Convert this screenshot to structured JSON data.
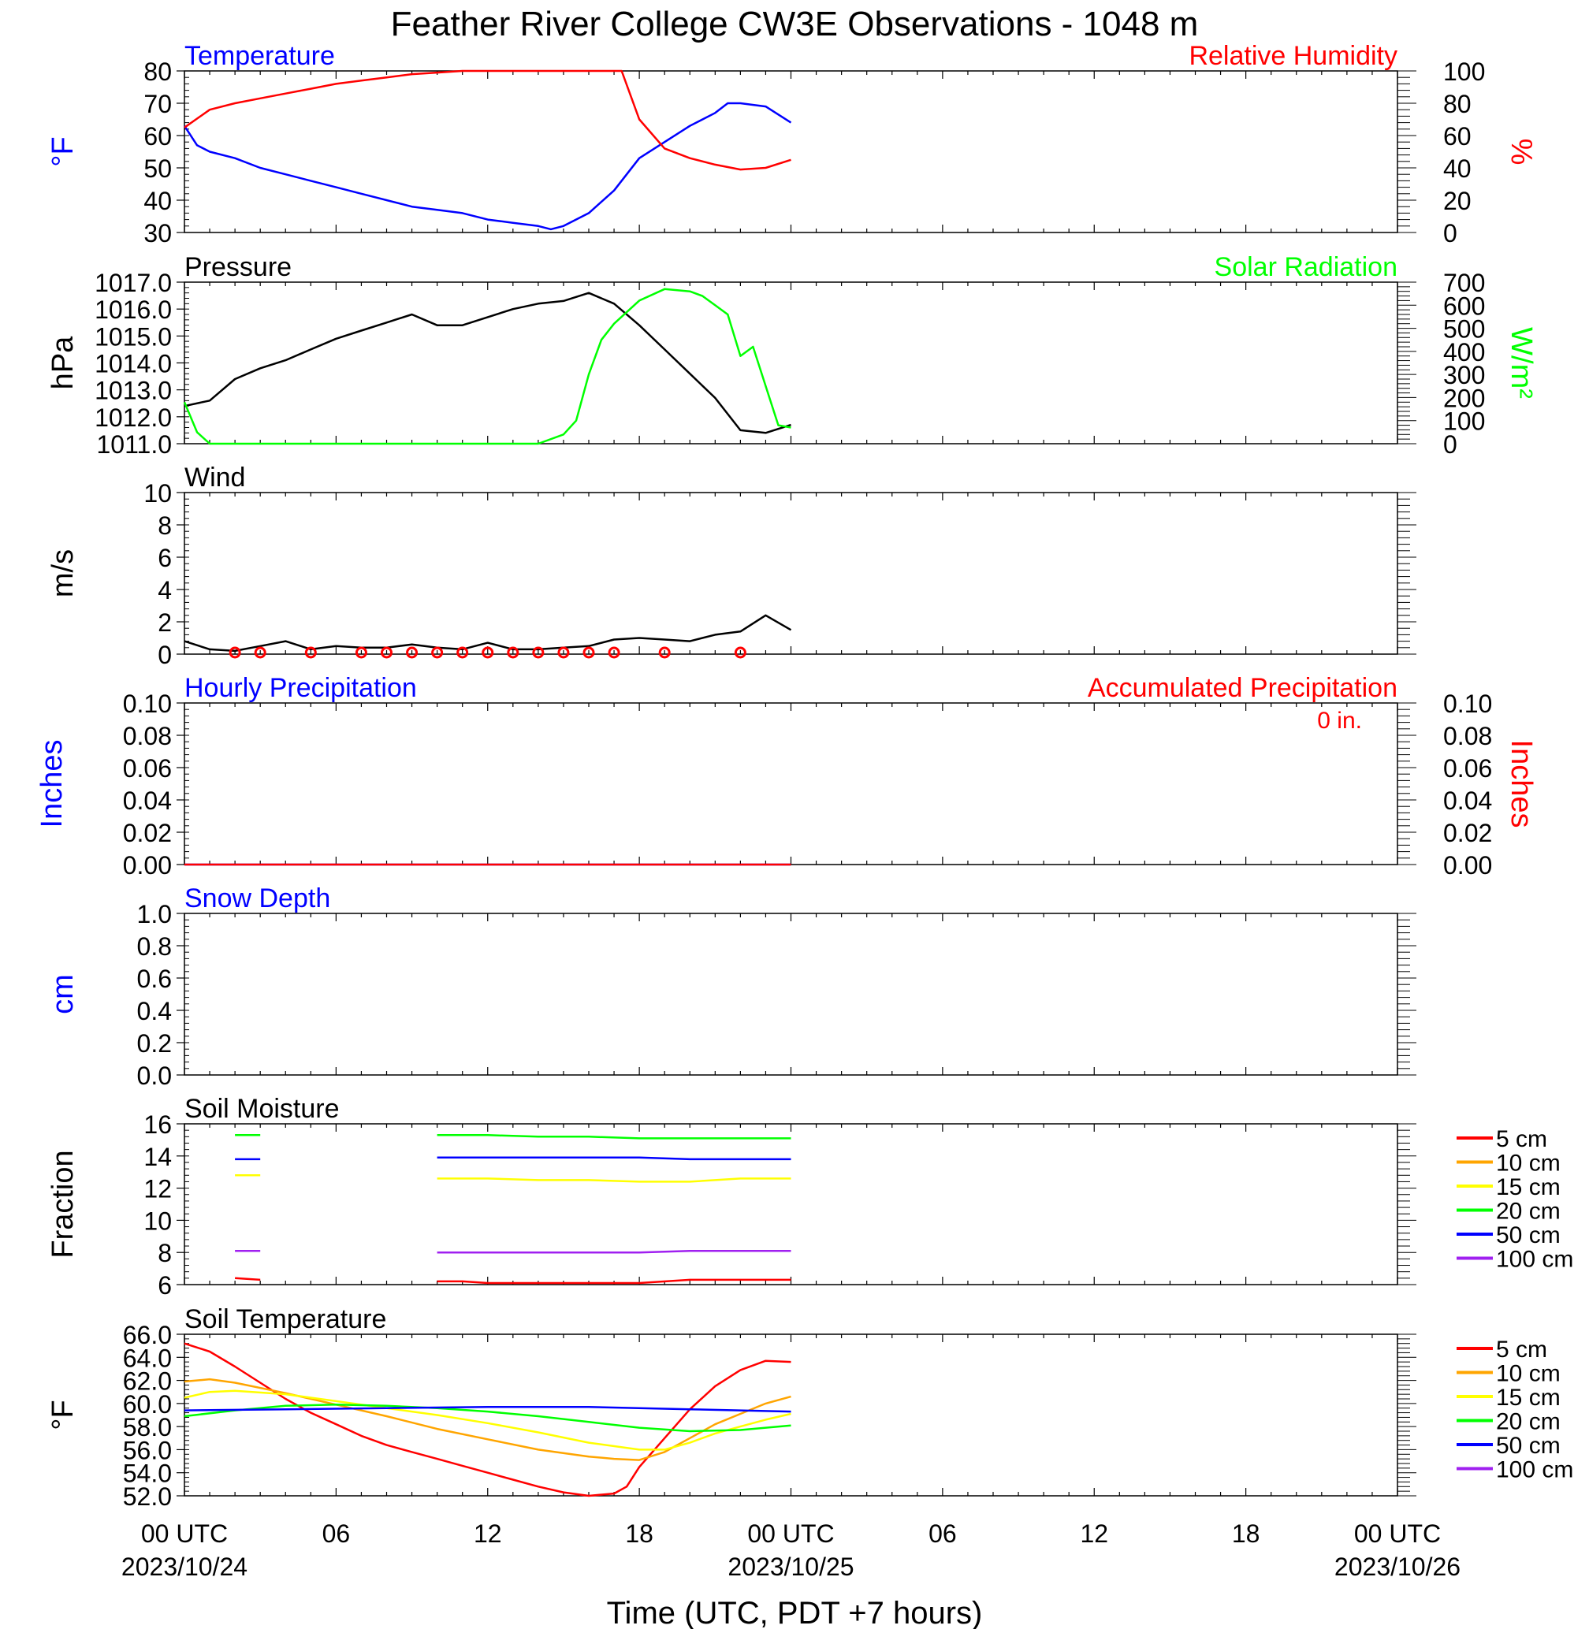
{
  "title": "Feather River College CW3E Observations - 1048 m",
  "xlabel": "Time (UTC, PDT +7 hours)",
  "colors": {
    "temp": "#0000ff",
    "rh": "#ff0000",
    "pres": "#000000",
    "solar": "#00ff00",
    "wind": "#000000",
    "barb": "#ff0000",
    "precip_hourly": "#0000ff",
    "precip_acc": "#ff0000",
    "snow": "#0000ff"
  },
  "x_axis": {
    "ticks": [
      {
        "h": 0,
        "label": "00 UTC",
        "date": "2023/10/24"
      },
      {
        "h": 6,
        "label": "06",
        "date": ""
      },
      {
        "h": 12,
        "label": "12",
        "date": ""
      },
      {
        "h": 18,
        "label": "18",
        "date": ""
      },
      {
        "h": 24,
        "label": "00 UTC",
        "date": "2023/10/25"
      },
      {
        "h": 30,
        "label": "06",
        "date": ""
      },
      {
        "h": 36,
        "label": "12",
        "date": ""
      },
      {
        "h": 42,
        "label": "18",
        "date": ""
      },
      {
        "h": 48,
        "label": "00 UTC",
        "date": "2023/10/26"
      }
    ],
    "range": [
      0,
      48
    ]
  },
  "legend": [
    {
      "label": "5 cm",
      "color": "#ff0000"
    },
    {
      "label": "10 cm",
      "color": "#ffa500"
    },
    {
      "label": "15 cm",
      "color": "#ffff00"
    },
    {
      "label": "20 cm",
      "color": "#00ff00"
    },
    {
      "label": "50 cm",
      "color": "#0000ff"
    },
    {
      "label": "100 cm",
      "color": "#a020f0"
    }
  ],
  "panels": [
    {
      "id": "temp_rh",
      "left_title": "Temperature",
      "left_title_color": "#0000ff",
      "right_title": "Relative Humidity",
      "right_title_color": "#ff0000",
      "left_ylabel": "°F",
      "left_ylabel_color": "#0000ff",
      "right_ylabel": "%",
      "right_ylabel_color": "#ff0000",
      "left_ticks": [
        "80",
        "70",
        "60",
        "50",
        "40",
        "30"
      ],
      "right_ticks": [
        "100",
        "80",
        "60",
        "40",
        "20",
        "0"
      ],
      "note": ""
    },
    {
      "id": "pres_solar",
      "left_title": "Pressure",
      "left_title_color": "#000000",
      "right_title": "Solar Radiation",
      "right_title_color": "#00ff00",
      "left_ylabel": "hPa",
      "left_ylabel_color": "#000000",
      "right_ylabel": "W/m²",
      "right_ylabel_color": "#00ff00",
      "left_ticks": [
        "1017.0",
        "1016.0",
        "1015.0",
        "1014.0",
        "1013.0",
        "1012.0",
        "1011.0"
      ],
      "right_ticks": [
        "700",
        "600",
        "500",
        "400",
        "300",
        "200",
        "100",
        "0"
      ],
      "note": ""
    },
    {
      "id": "wind",
      "left_title": "Wind",
      "left_title_color": "#000000",
      "right_title": "",
      "right_title_color": "#000000",
      "left_ylabel": "m/s",
      "left_ylabel_color": "#000000",
      "right_ylabel": "",
      "right_ylabel_color": "#000000",
      "left_ticks": [
        "10",
        "8",
        "6",
        "4",
        "2",
        "0"
      ],
      "right_ticks": [],
      "note": ""
    },
    {
      "id": "precip",
      "left_title": "Hourly Precipitation",
      "left_title_color": "#0000ff",
      "right_title": "Accumulated Precipitation",
      "right_title_color": "#ff0000",
      "left_ylabel": "Inches",
      "left_ylabel_color": "#0000ff",
      "right_ylabel": "Inches",
      "right_ylabel_color": "#ff0000",
      "left_ticks": [
        "0.10",
        "0.08",
        "0.06",
        "0.04",
        "0.02",
        "0.00"
      ],
      "right_ticks": [
        "0.10",
        "0.08",
        "0.06",
        "0.04",
        "0.02",
        "0.00"
      ],
      "note": "0 in."
    },
    {
      "id": "snow",
      "left_title": "Snow Depth",
      "left_title_color": "#0000ff",
      "right_title": "",
      "right_title_color": "#000000",
      "left_ylabel": "cm",
      "left_ylabel_color": "#0000ff",
      "right_ylabel": "",
      "right_ylabel_color": "#000000",
      "left_ticks": [
        "1.0",
        "0.8",
        "0.6",
        "0.4",
        "0.2",
        "0.0"
      ],
      "right_ticks": [],
      "note": ""
    },
    {
      "id": "soil_moist",
      "left_title": "Soil Moisture",
      "left_title_color": "#000000",
      "right_title": "",
      "right_title_color": "#000000",
      "left_ylabel": "Fraction",
      "left_ylabel_color": "#000000",
      "right_ylabel": "",
      "right_ylabel_color": "#000000",
      "left_ticks": [
        "16",
        "14",
        "12",
        "10",
        "8",
        "6"
      ],
      "right_ticks": [],
      "note": ""
    },
    {
      "id": "soil_temp",
      "left_title": "Soil Temperature",
      "left_title_color": "#000000",
      "right_title": "",
      "right_title_color": "#000000",
      "left_ylabel": "°F",
      "left_ylabel_color": "#000000",
      "right_ylabel": "",
      "right_ylabel_color": "#000000",
      "left_ticks": [
        "66.0",
        "64.0",
        "62.0",
        "60.0",
        "58.0",
        "56.0",
        "54.0",
        "52.0"
      ],
      "right_ticks": [],
      "note": ""
    }
  ],
  "chart_data": [
    {
      "type": "line",
      "panel": "temp_rh",
      "x_units": "hours since 2023/10/24 00 UTC",
      "xlim": [
        0,
        48
      ],
      "series": [
        {
          "name": "Temperature",
          "axis": "left",
          "ylim": [
            30,
            80
          ],
          "x": [
            0,
            0.5,
            1,
            2,
            3,
            4,
            5,
            6,
            7,
            8,
            9,
            10,
            11,
            12,
            13,
            14,
            14.5,
            15,
            16,
            17,
            18,
            19,
            20,
            21,
            21.5,
            22,
            23,
            24
          ],
          "y": [
            63,
            57,
            55,
            53,
            50,
            48,
            46,
            44,
            42,
            40,
            38,
            37,
            36,
            34,
            33,
            32,
            31,
            32,
            36,
            43,
            53,
            58,
            63,
            67,
            70,
            70,
            69,
            64
          ]
        },
        {
          "name": "Relative Humidity",
          "axis": "right",
          "ylim": [
            0,
            100
          ],
          "x": [
            0,
            1,
            2,
            3,
            4,
            5,
            6,
            7,
            8,
            9,
            10,
            11,
            12,
            13,
            14,
            15,
            16,
            17,
            17.3,
            18,
            19,
            20,
            21,
            22,
            23,
            24
          ],
          "y": [
            65,
            76,
            80,
            83,
            86,
            89,
            92,
            94,
            96,
            98,
            99,
            100,
            100,
            100,
            100,
            100,
            100,
            100,
            100,
            70,
            52,
            46,
            42,
            39,
            40,
            45
          ]
        }
      ]
    },
    {
      "type": "line",
      "panel": "pres_solar",
      "x_units": "hours since 2023/10/24 00 UTC",
      "xlim": [
        0,
        48
      ],
      "series": [
        {
          "name": "Pressure",
          "axis": "left",
          "ylim": [
            1011,
            1017
          ],
          "x": [
            0,
            1,
            2,
            3,
            4,
            5,
            6,
            7,
            8,
            9,
            10,
            11,
            12,
            13,
            14,
            15,
            16,
            17,
            18,
            19,
            20,
            21,
            22,
            23,
            24
          ],
          "y": [
            1012.4,
            1012.6,
            1013.4,
            1013.8,
            1014.1,
            1014.5,
            1014.9,
            1015.2,
            1015.5,
            1015.8,
            1015.4,
            1015.4,
            1015.7,
            1016.0,
            1016.2,
            1016.3,
            1016.6,
            1016.2,
            1015.4,
            1014.5,
            1013.6,
            1012.7,
            1011.5,
            1011.4,
            1011.7
          ]
        },
        {
          "name": "Solar Radiation",
          "axis": "right",
          "ylim": [
            0,
            700
          ],
          "x": [
            0,
            0.5,
            1,
            2,
            14,
            15,
            15.5,
            16,
            16.5,
            17,
            18,
            19,
            20,
            20.5,
            21,
            21.5,
            22,
            22.5,
            23,
            23.5,
            24
          ],
          "y": [
            180,
            50,
            0,
            0,
            0,
            40,
            100,
            300,
            450,
            520,
            620,
            670,
            660,
            640,
            600,
            560,
            380,
            420,
            250,
            80,
            70
          ]
        }
      ]
    },
    {
      "type": "line",
      "panel": "wind",
      "x_units": "hours since 2023/10/24 00 UTC",
      "xlim": [
        0,
        48
      ],
      "ylim": [
        0,
        10
      ],
      "series": [
        {
          "name": "Wind Speed",
          "x": [
            0,
            1,
            2,
            3,
            4,
            5,
            6,
            7,
            8,
            9,
            10,
            11,
            12,
            13,
            14,
            15,
            16,
            17,
            18,
            19,
            20,
            21,
            22,
            23,
            24
          ],
          "y": [
            0.8,
            0.3,
            0.2,
            0.5,
            0.8,
            0.3,
            0.5,
            0.4,
            0.4,
            0.6,
            0.4,
            0.3,
            0.7,
            0.3,
            0.3,
            0.4,
            0.5,
            0.9,
            1.0,
            0.9,
            0.8,
            1.2,
            1.4,
            2.4,
            1.5
          ]
        }
      ],
      "barbs_hours": [
        2,
        3,
        5,
        7,
        8,
        9,
        10,
        11,
        12,
        13,
        14,
        15,
        16,
        17,
        19,
        22
      ]
    },
    {
      "type": "line",
      "panel": "precip",
      "x_units": "hours since 2023/10/24 00 UTC",
      "xlim": [
        0,
        48
      ],
      "ylim": [
        0,
        0.1
      ],
      "series": [
        {
          "name": "Hourly Precipitation",
          "x": [
            0,
            24
          ],
          "y": [
            0,
            0
          ]
        },
        {
          "name": "Accumulated Precipitation",
          "x": [
            0,
            24
          ],
          "y": [
            0,
            0
          ]
        }
      ]
    },
    {
      "type": "line",
      "panel": "snow",
      "x_units": "hours since 2023/10/24 00 UTC",
      "xlim": [
        0,
        48
      ],
      "ylim": [
        0,
        1
      ],
      "series": []
    },
    {
      "type": "line",
      "panel": "soil_moist",
      "x_units": "hours since 2023/10/24 00 UTC",
      "xlim": [
        0,
        48
      ],
      "ylim": [
        6,
        16
      ],
      "series": [
        {
          "name": "5 cm",
          "segments": [
            {
              "x": [
                2,
                3
              ],
              "y": [
                6.4,
                6.3
              ]
            },
            {
              "x": [
                10,
                11,
                12,
                14,
                16,
                18,
                20,
                22,
                24
              ],
              "y": [
                6.2,
                6.2,
                6.1,
                6.1,
                6.1,
                6.1,
                6.3,
                6.3,
                6.3
              ]
            }
          ]
        },
        {
          "name": "15 cm",
          "segments": [
            {
              "x": [
                2,
                3
              ],
              "y": [
                12.8,
                12.8
              ]
            },
            {
              "x": [
                10,
                12,
                14,
                16,
                18,
                20,
                22,
                24
              ],
              "y": [
                12.6,
                12.6,
                12.5,
                12.5,
                12.4,
                12.4,
                12.6,
                12.6
              ]
            }
          ]
        },
        {
          "name": "20 cm",
          "segments": [
            {
              "x": [
                2,
                3
              ],
              "y": [
                15.3,
                15.3
              ]
            },
            {
              "x": [
                10,
                12,
                14,
                16,
                18,
                20,
                22,
                24
              ],
              "y": [
                15.3,
                15.3,
                15.2,
                15.2,
                15.1,
                15.1,
                15.1,
                15.1
              ]
            }
          ]
        },
        {
          "name": "50 cm",
          "segments": [
            {
              "x": [
                2,
                3
              ],
              "y": [
                13.8,
                13.8
              ]
            },
            {
              "x": [
                10,
                12,
                14,
                16,
                18,
                20,
                22,
                24
              ],
              "y": [
                13.9,
                13.9,
                13.9,
                13.9,
                13.9,
                13.8,
                13.8,
                13.8
              ]
            }
          ]
        },
        {
          "name": "100 cm",
          "segments": [
            {
              "x": [
                2,
                3
              ],
              "y": [
                8.1,
                8.1
              ]
            },
            {
              "x": [
                10,
                12,
                14,
                16,
                18,
                20,
                22,
                24
              ],
              "y": [
                8.0,
                8.0,
                8.0,
                8.0,
                8.0,
                8.1,
                8.1,
                8.1
              ]
            }
          ]
        }
      ]
    },
    {
      "type": "line",
      "panel": "soil_temp",
      "x_units": "hours since 2023/10/24 00 UTC",
      "xlim": [
        0,
        48
      ],
      "ylim": [
        52,
        66
      ],
      "series": [
        {
          "name": "5 cm",
          "x": [
            0,
            1,
            2,
            3,
            4,
            5,
            6,
            7,
            8,
            9,
            10,
            11,
            12,
            13,
            14,
            15,
            16,
            17,
            17.5,
            18,
            19,
            20,
            21,
            22,
            23,
            24
          ],
          "y": [
            65.2,
            64.5,
            63.2,
            61.8,
            60.4,
            59.2,
            58.2,
            57.2,
            56.4,
            55.8,
            55.2,
            54.6,
            54.0,
            53.4,
            52.8,
            52.3,
            52.0,
            52.2,
            52.8,
            54.5,
            57.0,
            59.5,
            61.5,
            62.9,
            63.7,
            63.6
          ]
        },
        {
          "name": "10 cm",
          "x": [
            0,
            1,
            2,
            4,
            6,
            8,
            10,
            12,
            14,
            16,
            17,
            18,
            19,
            20,
            21,
            22,
            23,
            24
          ],
          "y": [
            61.9,
            62.1,
            61.8,
            60.9,
            59.9,
            58.9,
            57.8,
            56.9,
            56.0,
            55.4,
            55.2,
            55.1,
            55.8,
            57.0,
            58.2,
            59.1,
            60.0,
            60.6
          ]
        },
        {
          "name": "15 cm",
          "x": [
            0,
            1,
            2,
            4,
            6,
            8,
            10,
            12,
            14,
            16,
            18,
            19,
            20,
            21,
            22,
            23,
            24
          ],
          "y": [
            60.5,
            61.0,
            61.1,
            60.8,
            60.2,
            59.6,
            59.0,
            58.3,
            57.5,
            56.6,
            56.0,
            56.0,
            56.6,
            57.4,
            58.0,
            58.6,
            59.1
          ]
        },
        {
          "name": "20 cm",
          "x": [
            0,
            2,
            4,
            6,
            8,
            10,
            12,
            14,
            16,
            18,
            20,
            22,
            24
          ],
          "y": [
            58.9,
            59.4,
            59.8,
            59.9,
            59.8,
            59.6,
            59.3,
            58.9,
            58.4,
            57.9,
            57.6,
            57.7,
            58.1
          ]
        },
        {
          "name": "50 cm",
          "x": [
            0,
            4,
            8,
            12,
            16,
            20,
            24
          ],
          "y": [
            59.4,
            59.5,
            59.6,
            59.7,
            59.7,
            59.5,
            59.3
          ]
        }
      ]
    }
  ]
}
